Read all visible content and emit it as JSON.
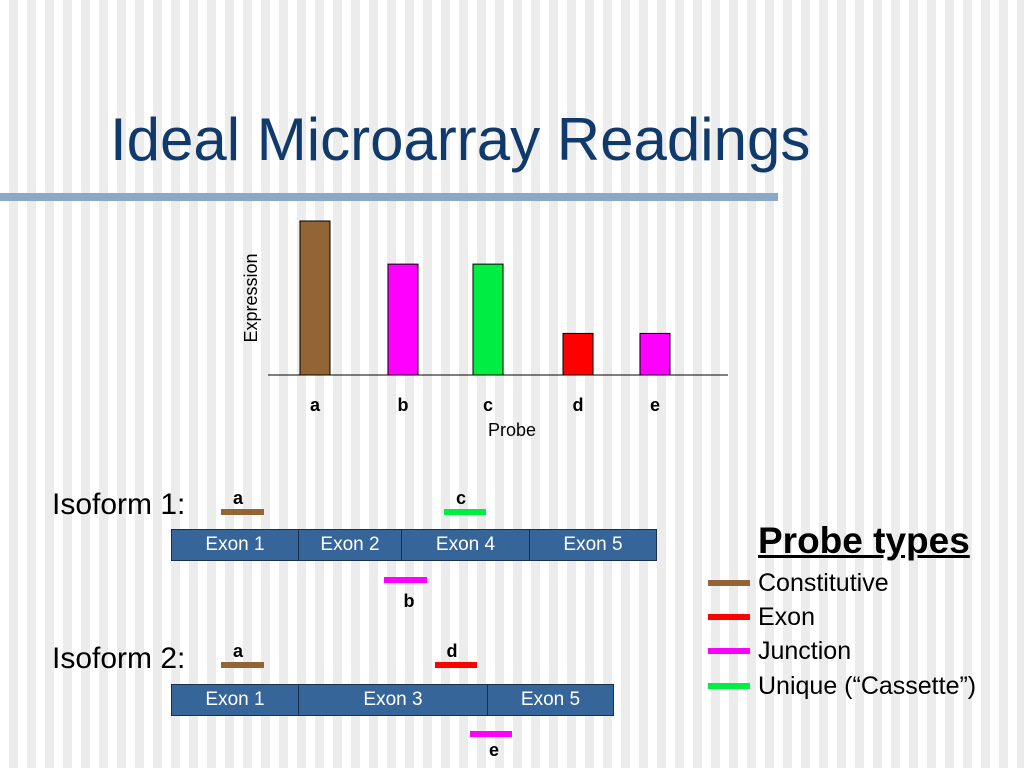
{
  "slide": {
    "title": "Ideal Microarray Readings"
  },
  "chart_data": {
    "type": "bar",
    "categories": [
      "a",
      "b",
      "c",
      "d",
      "e"
    ],
    "values": [
      100,
      72,
      72,
      27,
      27
    ],
    "colors": [
      "#936434",
      "#ff00ff",
      "#00ee44",
      "#ff0000",
      "#ff00ff"
    ],
    "xlabel": "Probe",
    "ylabel": "Expression",
    "ylim": [
      0,
      100
    ],
    "grid": false
  },
  "isoform1": {
    "label": "Isoform 1:",
    "exons": [
      "Exon 1",
      "Exon 2",
      "Exon 4",
      "Exon 5"
    ],
    "probes": {
      "a": "a",
      "b": "b",
      "c": "c"
    }
  },
  "isoform2": {
    "label": "Isoform 2:",
    "exons": [
      "Exon 1",
      "Exon 3",
      "Exon 5"
    ],
    "probes": {
      "a": "a",
      "d": "d",
      "e": "e"
    }
  },
  "legend": {
    "title": "Probe types",
    "items": [
      {
        "label": "Constitutive",
        "color": "#936434"
      },
      {
        "label": "Exon",
        "color": "#ff0000"
      },
      {
        "label": "Junction",
        "color": "#ff00ff"
      },
      {
        "label": "Unique (“Cassette”)",
        "color": "#00ee44"
      }
    ]
  },
  "colors": {
    "title": "#0f3a6b",
    "exon_fill": "#36659a",
    "constitutive": "#936434",
    "exon": "#ff0000",
    "junction": "#ff00ff",
    "unique": "#00ee44"
  }
}
